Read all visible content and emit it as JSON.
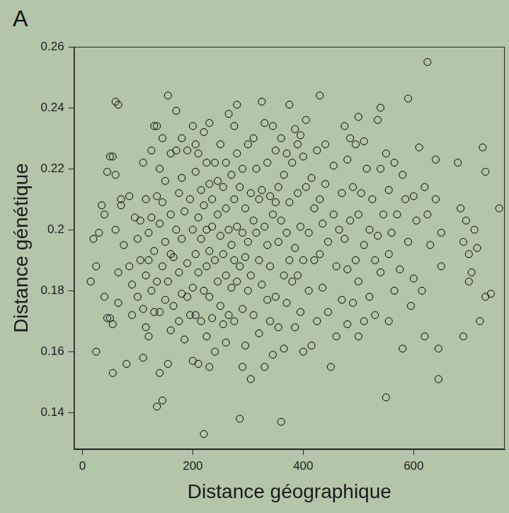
{
  "chart_data": {
    "type": "scatter",
    "panel": "A",
    "x_label": "Distance géographique",
    "y_label": "Distance génétique",
    "xlim": [
      -15,
      765
    ],
    "xticks": [
      0,
      200,
      400,
      600
    ],
    "ylim": [
      0.128,
      0.26
    ],
    "yticks": [
      0.14,
      0.16,
      0.18,
      0.2,
      0.22,
      0.24,
      0.26
    ],
    "grid": false,
    "color": "#000000",
    "marker": "circle",
    "x": [
      15,
      20,
      25,
      25,
      30,
      40,
      40,
      45,
      50,
      50,
      55,
      55,
      60,
      65,
      60,
      60,
      65,
      65,
      70,
      70,
      75,
      80,
      85,
      85,
      90,
      90,
      95,
      100,
      100,
      55,
      45,
      35,
      105,
      105,
      110,
      110,
      110,
      115,
      115,
      115,
      120,
      120,
      120,
      125,
      125,
      125,
      130,
      130,
      130,
      135,
      135,
      135,
      135,
      140,
      140,
      140,
      140,
      145,
      145,
      145,
      145,
      150,
      150,
      150,
      155,
      155,
      155,
      160,
      160,
      160,
      160,
      165,
      165,
      170,
      170,
      170,
      175,
      175,
      175,
      180,
      180,
      180,
      180,
      185,
      185,
      190,
      190,
      190,
      195,
      195,
      200,
      200,
      200,
      200,
      205,
      205,
      205,
      205,
      210,
      210,
      210,
      210,
      215,
      215,
      215,
      220,
      220,
      220,
      220,
      225,
      225,
      225,
      225,
      230,
      230,
      230,
      230,
      230,
      235,
      235,
      235,
      240,
      240,
      240,
      245,
      245,
      245,
      250,
      250,
      250,
      255,
      255,
      255,
      260,
      260,
      260,
      260,
      265,
      265,
      265,
      270,
      270,
      270,
      275,
      275,
      275,
      275,
      280,
      280,
      280,
      280,
      285,
      285,
      285,
      290,
      290,
      290,
      290,
      295,
      295,
      295,
      300,
      300,
      300,
      305,
      305,
      305,
      310,
      310,
      310,
      315,
      315,
      320,
      320,
      320,
      325,
      325,
      325,
      330,
      330,
      330,
      335,
      335,
      335,
      340,
      340,
      340,
      345,
      345,
      345,
      350,
      350,
      350,
      355,
      355,
      355,
      360,
      360,
      360,
      365,
      365,
      365,
      370,
      370,
      370,
      375,
      375,
      375,
      380,
      380,
      385,
      385,
      385,
      390,
      390,
      390,
      395,
      395,
      395,
      400,
      400,
      400,
      405,
      405,
      410,
      410,
      415,
      415,
      420,
      420,
      425,
      425,
      430,
      430,
      430,
      435,
      435,
      440,
      440,
      445,
      445,
      450,
      455,
      455,
      460,
      460,
      465,
      470,
      470,
      475,
      475,
      480,
      480,
      480,
      485,
      485,
      490,
      490,
      495,
      495,
      500,
      500,
      500,
      500,
      505,
      510,
      510,
      510,
      515,
      520,
      520,
      525,
      530,
      530,
      535,
      535,
      540,
      540,
      540,
      545,
      550,
      550,
      555,
      555,
      555,
      560,
      565,
      565,
      570,
      575,
      580,
      580,
      585,
      590,
      590,
      595,
      600,
      600,
      605,
      610,
      615,
      620,
      620,
      625,
      625,
      630,
      640,
      640,
      645,
      645,
      650,
      650,
      680,
      685,
      690,
      690,
      695,
      700,
      700,
      705,
      710,
      715,
      720,
      725,
      730,
      730,
      740,
      755
    ],
    "values": [
      0.183,
      0.197,
      0.188,
      0.16,
      0.199,
      0.178,
      0.205,
      0.219,
      0.224,
      0.171,
      0.169,
      0.153,
      0.242,
      0.241,
      0.218,
      0.2,
      0.186,
      0.176,
      0.208,
      0.21,
      0.195,
      0.156,
      0.211,
      0.188,
      0.182,
      0.172,
      0.204,
      0.197,
      0.178,
      0.224,
      0.171,
      0.208,
      0.203,
      0.19,
      0.222,
      0.158,
      0.174,
      0.21,
      0.185,
      0.168,
      0.199,
      0.165,
      0.19,
      0.226,
      0.204,
      0.18,
      0.234,
      0.193,
      0.173,
      0.234,
      0.211,
      0.183,
      0.142,
      0.22,
      0.202,
      0.173,
      0.153,
      0.23,
      0.209,
      0.188,
      0.144,
      0.216,
      0.196,
      0.177,
      0.244,
      0.183,
      0.156,
      0.225,
      0.205,
      0.192,
      0.167,
      0.191,
      0.175,
      0.239,
      0.226,
      0.2,
      0.212,
      0.186,
      0.17,
      0.23,
      0.217,
      0.197,
      0.179,
      0.206,
      0.164,
      0.226,
      0.189,
      0.178,
      0.21,
      0.172,
      0.234,
      0.2,
      0.181,
      0.157,
      0.228,
      0.219,
      0.192,
      0.172,
      0.225,
      0.204,
      0.186,
      0.156,
      0.213,
      0.197,
      0.17,
      0.232,
      0.208,
      0.18,
      0.133,
      0.222,
      0.2,
      0.188,
      0.165,
      0.235,
      0.215,
      0.193,
      0.178,
      0.155,
      0.21,
      0.201,
      0.171,
      0.222,
      0.19,
      0.16,
      0.216,
      0.205,
      0.183,
      0.228,
      0.198,
      0.175,
      0.214,
      0.192,
      0.169,
      0.222,
      0.207,
      0.185,
      0.163,
      0.238,
      0.2,
      0.172,
      0.218,
      0.195,
      0.181,
      0.234,
      0.21,
      0.19,
      0.17,
      0.241,
      0.225,
      0.201,
      0.183,
      0.214,
      0.188,
      0.138,
      0.22,
      0.199,
      0.174,
      0.155,
      0.207,
      0.191,
      0.162,
      0.228,
      0.196,
      0.18,
      0.212,
      0.185,
      0.151,
      0.23,
      0.203,
      0.172,
      0.22,
      0.199,
      0.21,
      0.19,
      0.166,
      0.242,
      0.213,
      0.182,
      0.235,
      0.201,
      0.155,
      0.222,
      0.195,
      0.177,
      0.211,
      0.188,
      0.17,
      0.234,
      0.205,
      0.159,
      0.226,
      0.209,
      0.178,
      0.214,
      0.196,
      0.168,
      0.23,
      0.203,
      0.137,
      0.218,
      0.185,
      0.161,
      0.225,
      0.199,
      0.176,
      0.241,
      0.209,
      0.19,
      0.222,
      0.183,
      0.233,
      0.194,
      0.168,
      0.228,
      0.212,
      0.185,
      0.231,
      0.201,
      0.173,
      0.224,
      0.19,
      0.16,
      0.236,
      0.214,
      0.199,
      0.18,
      0.217,
      0.162,
      0.207,
      0.19,
      0.226,
      0.17,
      0.244,
      0.21,
      0.192,
      0.202,
      0.181,
      0.228,
      0.215,
      0.196,
      0.173,
      0.155,
      0.221,
      0.205,
      0.188,
      0.165,
      0.2,
      0.212,
      0.177,
      0.234,
      0.197,
      0.223,
      0.187,
      0.169,
      0.23,
      0.203,
      0.214,
      0.176,
      0.228,
      0.19,
      0.237,
      0.205,
      0.183,
      0.165,
      0.212,
      0.229,
      0.195,
      0.17,
      0.22,
      0.2,
      0.178,
      0.21,
      0.19,
      0.172,
      0.236,
      0.198,
      0.24,
      0.22,
      0.186,
      0.205,
      0.225,
      0.145,
      0.213,
      0.192,
      0.17,
      0.199,
      0.222,
      0.18,
      0.205,
      0.187,
      0.218,
      0.161,
      0.21,
      0.243,
      0.196,
      0.175,
      0.211,
      0.184,
      0.203,
      0.227,
      0.18,
      0.214,
      0.165,
      0.255,
      0.205,
      0.195,
      0.223,
      0.21,
      0.161,
      0.151,
      0.199,
      0.188,
      0.222,
      0.207,
      0.165,
      0.196,
      0.203,
      0.183,
      0.192,
      0.186,
      0.2,
      0.194,
      0.17,
      0.227,
      0.219,
      0.178,
      0.179,
      0.207
    ]
  }
}
